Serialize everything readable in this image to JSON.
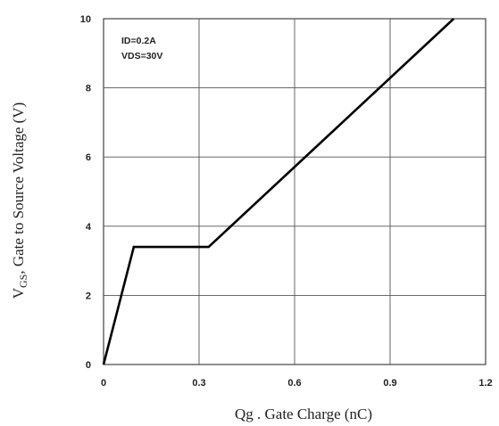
{
  "chart_data": {
    "type": "line",
    "title": "",
    "xlabel": "Qg . Gate Charge (nC)",
    "ylabel_main": "V",
    "ylabel_sub": "GS",
    "ylabel_rest": ", Gate to Source Voltage (V)",
    "xlim": [
      0,
      1.2
    ],
    "ylim": [
      0,
      10
    ],
    "x_ticks": [
      "0",
      "0.3",
      "0.6",
      "0.9",
      "1.2"
    ],
    "y_ticks": [
      "0",
      "2",
      "4",
      "6",
      "8",
      "10"
    ],
    "grid": true,
    "annotations": [
      "ID=0.2A",
      "VDS=30V"
    ],
    "series": [
      {
        "x": [
          0,
          0.095,
          0.33,
          1.1
        ],
        "y": [
          0,
          3.4,
          3.4,
          10
        ]
      }
    ]
  },
  "colors": {
    "line": "#000000",
    "grid": "#555555",
    "frame": "#444444"
  }
}
